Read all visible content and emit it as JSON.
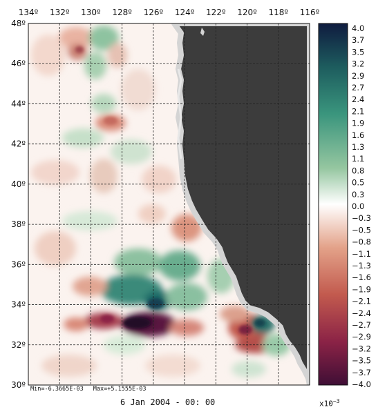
{
  "map": {
    "lon_ticks": [
      "134º",
      "132º",
      "130º",
      "128º",
      "126º",
      "124º",
      "122º",
      "120º",
      "118º",
      "116º"
    ],
    "lat_ticks": [
      "48º",
      "46º",
      "44º",
      "42º",
      "40º",
      "38º",
      "36º",
      "34º",
      "32º",
      "30º"
    ],
    "lon_range": [
      -134,
      -116
    ],
    "lat_range": [
      30,
      48
    ],
    "grid": true,
    "land_color": "#3c3c3c",
    "coast_color": "#d4d4d4"
  },
  "colorbar": {
    "labels": [
      "4.0",
      "3.7",
      "3.5",
      "3.2",
      "2.9",
      "2.7",
      "2.4",
      "2.1",
      "1.9",
      "1.6",
      "1.3",
      "1.1",
      "0.8",
      "0.5",
      "0.3",
      "0.0",
      "−0.3",
      "−0.5",
      "−0.8",
      "−1.1",
      "−1.3",
      "−1.6",
      "−1.9",
      "−2.1",
      "−2.4",
      "−2.7",
      "−2.9",
      "−3.2",
      "−3.5",
      "−3.7",
      "−4.0"
    ],
    "range": [
      -4.0,
      4.0
    ],
    "scale_prefix": "x10",
    "scale_exponent": "−3",
    "colors": [
      "#0f1b3f",
      "#1d5c5e",
      "#3a957d",
      "#95c6a0",
      "#ffffff",
      "#e3a289",
      "#c25a4e",
      "#8b2346",
      "#3f0e35"
    ]
  },
  "stats": {
    "min_text": "Min=-6.3665E-03",
    "max_text": "Max=+5.1555E-03"
  },
  "timestamp": "6 Jan 2004 - 00: 00"
}
